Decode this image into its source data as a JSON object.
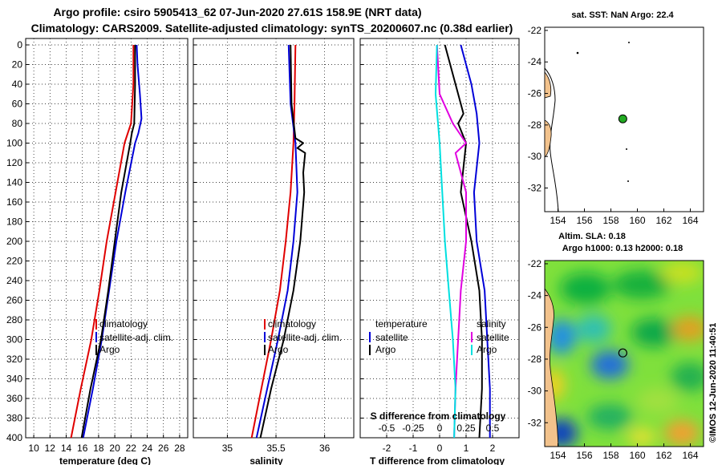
{
  "header": {
    "line1": "Argo profile: csiro 5905413_62 07-Jun-2020 27.61S 158.9E (NRT data)",
    "line2": "Climatology: CARS2009. Satellite-adjusted climatology: synTS_20200607.nc (0.38d earlier)"
  },
  "colors": {
    "climatology": "#e00000",
    "satellite": "#0000d8",
    "argo": "#000000",
    "t_diff": "#00e0e0",
    "s_diff": "#e000e0",
    "land": "#f2c28c",
    "float_marker": "#22aa22"
  },
  "chart_data": [
    {
      "id": "temperature",
      "type": "line",
      "xlabel": "temperature (deg C)",
      "xlim": [
        9,
        29
      ],
      "xticks": [
        10,
        12,
        14,
        16,
        18,
        20,
        22,
        24,
        26,
        28
      ],
      "ylim": [
        0,
        400
      ],
      "yticks": [
        0,
        20,
        40,
        60,
        80,
        100,
        120,
        140,
        160,
        180,
        200,
        220,
        240,
        260,
        280,
        300,
        320,
        340,
        360,
        380,
        400
      ],
      "legend": [
        "climatology",
        "satellite-adj. clim.",
        "Argo"
      ],
      "series": [
        {
          "name": "climatology",
          "color": "#e00000",
          "depth": [
            0,
            40,
            80,
            100,
            150,
            200,
            250,
            300,
            350,
            400
          ],
          "values": [
            22.3,
            22.3,
            22.0,
            21.2,
            20.1,
            19.0,
            18.1,
            17.1,
            15.8,
            14.6
          ]
        },
        {
          "name": "satellite-adj. clim.",
          "color": "#0000d8",
          "depth": [
            0,
            20,
            50,
            75,
            90,
            100,
            150,
            200,
            250,
            300,
            350,
            400
          ],
          "values": [
            22.7,
            22.8,
            23.1,
            23.3,
            22.9,
            22.5,
            21.3,
            20.2,
            19.3,
            18.4,
            17.3,
            16.1
          ]
        },
        {
          "name": "Argo",
          "color": "#000000",
          "depth": [
            0,
            40,
            80,
            90,
            100,
            150,
            200,
            250,
            300,
            350,
            400
          ],
          "values": [
            22.5,
            22.5,
            22.4,
            22.1,
            21.9,
            20.8,
            20.0,
            19.2,
            18.3,
            17.0,
            15.9
          ]
        }
      ]
    },
    {
      "id": "salinity",
      "type": "line",
      "xlabel": "salinity",
      "xlim": [
        34.65,
        36.3
      ],
      "xticks": [
        35,
        35.5,
        36
      ],
      "ylim": [
        0,
        400
      ],
      "legend": [
        "climatology",
        "satellite-adj. clim.",
        "Argo"
      ],
      "series": [
        {
          "name": "climatology",
          "color": "#e00000",
          "depth": [
            0,
            60,
            100,
            150,
            200,
            250,
            300,
            350,
            400
          ],
          "values": [
            35.7,
            35.69,
            35.68,
            35.65,
            35.6,
            35.54,
            35.45,
            35.35,
            35.25
          ]
        },
        {
          "name": "satellite-adj. clim.",
          "color": "#0000d8",
          "depth": [
            0,
            60,
            100,
            150,
            200,
            250,
            300,
            350,
            400
          ],
          "values": [
            35.63,
            35.65,
            35.7,
            35.72,
            35.68,
            35.62,
            35.52,
            35.41,
            35.3
          ]
        },
        {
          "name": "Argo",
          "color": "#000000",
          "depth": [
            0,
            60,
            95,
            100,
            105,
            110,
            130,
            150,
            200,
            250,
            300,
            350,
            400
          ],
          "values": [
            35.65,
            35.66,
            35.7,
            35.78,
            35.72,
            35.8,
            35.78,
            35.79,
            35.75,
            35.68,
            35.58,
            35.45,
            35.34
          ]
        }
      ]
    },
    {
      "id": "differences",
      "type": "line",
      "xlabel": "T difference from climatology",
      "xlabel_top": "S difference from climatology",
      "xlim": [
        -3,
        3
      ],
      "xticks": [
        -2,
        -1,
        0,
        1,
        2
      ],
      "xticks_top_labels": [
        "-0.5",
        "-0.25",
        "0",
        "0.25",
        "0.5"
      ],
      "xticks_top_positions": [
        -2,
        -1,
        0,
        1,
        2
      ],
      "ylim": [
        0,
        400
      ],
      "legend_left_title": "temperature",
      "legend_right_title": "salinity",
      "legend_left": [
        "satellite",
        "Argo"
      ],
      "legend_right": [
        "satellite",
        "Argo"
      ],
      "series": [
        {
          "name": "T satellite",
          "color": "#0000d8",
          "depth": [
            0,
            40,
            70,
            100,
            150,
            200,
            250,
            300,
            350,
            400
          ],
          "values": [
            0.8,
            1.2,
            1.4,
            1.5,
            1.3,
            1.4,
            1.7,
            1.8,
            1.9,
            1.9
          ]
        },
        {
          "name": "T Argo",
          "color": "#000000",
          "depth": [
            0,
            40,
            70,
            80,
            100,
            150,
            200,
            250,
            300,
            350,
            400
          ],
          "values": [
            0.2,
            0.6,
            0.9,
            0.7,
            1.0,
            0.8,
            1.2,
            1.5,
            1.6,
            1.6,
            1.5
          ]
        },
        {
          "name": "S satellite",
          "color": "#e000e0",
          "depth": [
            0,
            50,
            80,
            100,
            110,
            150,
            200,
            250,
            300,
            350,
            400
          ],
          "values": [
            -0.1,
            0.0,
            0.5,
            1.0,
            0.6,
            1.0,
            1.0,
            0.8,
            0.7,
            0.6,
            0.55
          ]
        },
        {
          "name": "S Argo",
          "color": "#00e0e0",
          "depth": [
            0,
            50,
            100,
            150,
            200,
            250,
            300,
            350,
            400
          ],
          "values": [
            -0.1,
            -0.15,
            0.0,
            0.1,
            0.2,
            0.35,
            0.5,
            0.6,
            0.55
          ]
        }
      ]
    },
    {
      "id": "sst_map",
      "type": "map",
      "title": "sat. SST: NaN Argo: 22.4",
      "xlim": [
        153,
        165
      ],
      "xticks": [
        154,
        156,
        158,
        160,
        162,
        164
      ],
      "ylim": [
        -33.5,
        -21.8
      ],
      "yticks": [
        -22,
        -24,
        -26,
        -28,
        -30,
        -32
      ],
      "float_position": [
        158.9,
        -27.61
      ]
    },
    {
      "id": "sla_map",
      "type": "heatmap",
      "title_line1": "Altim. SLA: 0.18",
      "title_line2": "Argo h1000: 0.13 h2000: 0.18",
      "xlim": [
        153,
        165
      ],
      "xticks": [
        154,
        156,
        158,
        160,
        162,
        164
      ],
      "ylim": [
        -33.5,
        -21.8
      ],
      "yticks": [
        -22,
        -24,
        -26,
        -28,
        -30,
        -32
      ],
      "float_position": [
        158.9,
        -27.61
      ]
    }
  ],
  "footer": {
    "stamp": "©IMOS 12-Jun-2020 11:40:51"
  }
}
